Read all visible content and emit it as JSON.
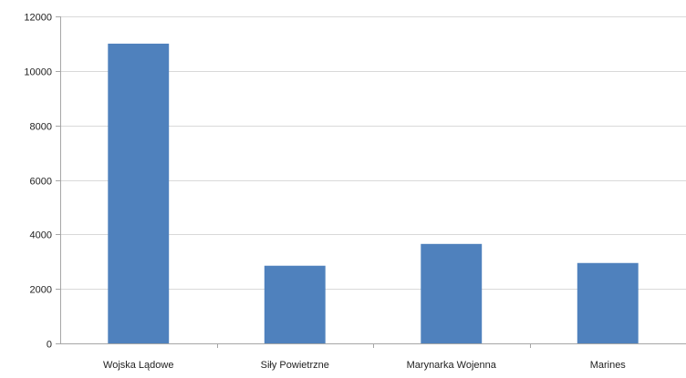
{
  "chart_data": {
    "type": "bar",
    "categories": [
      "Wojska Lądowe",
      "Siły Powietrzne",
      "Marynarka Wojenna",
      "Marines"
    ],
    "values": [
      11000,
      2850,
      3650,
      2950
    ],
    "ylim": [
      0,
      12000
    ],
    "yticks": [
      0,
      2000,
      4000,
      6000,
      8000,
      10000,
      12000
    ],
    "grid": true,
    "legend": "none",
    "bar_color": "#4f81bd",
    "grid_color": "#d9d9d9",
    "axis_color": "#a6a6a6"
  }
}
